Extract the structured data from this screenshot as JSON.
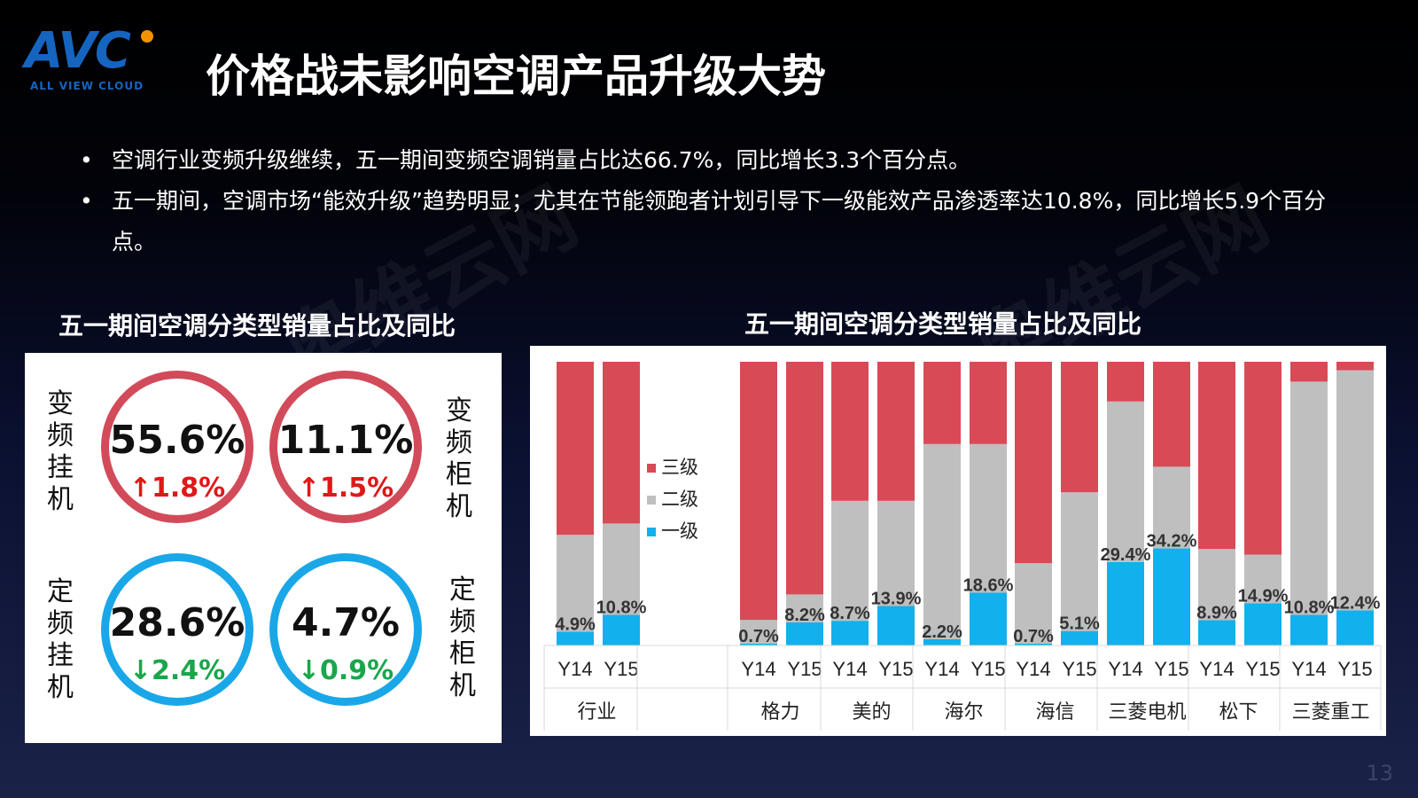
{
  "logo": {
    "mark": "AVC",
    "sub": "ALL VIEW CLOUD"
  },
  "title": "价格战未影响空调产品升级大势",
  "bullets": [
    "空调行业变频升级继续，五一期间变频空调销量占比达66.7%，同比增长3.3个百分点。",
    "五一期间，空调市场“能效升级”趋势明显；尤其在节能领跑者计划引导下一级能效产品渗透率达10.8%，同比增长5.9个百分点。"
  ],
  "left_title": "五一期间空调分类型销量占比及同比",
  "right_title": "五一期间空调分类型销量占比及同比",
  "circles": [
    {
      "label": "变频挂机",
      "pct": "55.6%",
      "change": "↑1.8%",
      "dir": "up"
    },
    {
      "label": "变频柜机",
      "pct": "11.1%",
      "change": "↑1.5%",
      "dir": "up"
    },
    {
      "label": "定频挂机",
      "pct": "28.6%",
      "change": "↓2.4%",
      "dir": "down"
    },
    {
      "label": "定频柜机",
      "pct": "4.7%",
      "change": "↓0.9%",
      "dir": "down"
    }
  ],
  "chart_data": {
    "type": "bar",
    "stacked": true,
    "percent_stacked": true,
    "legend": [
      "三级",
      "二级",
      "一级"
    ],
    "legend_position": "left",
    "colors": {
      "三级": "#d94a57",
      "二级": "#bfbfbf",
      "一级": "#12b0ec"
    },
    "groups": [
      {
        "name": "行业",
        "bars": [
          {
            "label": "Y14",
            "一级": 4.9,
            "二级": 34.1,
            "三级": 61.0,
            "text": "4.9%"
          },
          {
            "label": "Y15",
            "一级": 10.8,
            "二级": 32.2,
            "三级": 57.0,
            "text": "10.8%"
          }
        ]
      },
      {
        "name": "格力",
        "bars": [
          {
            "label": "Y14",
            "一级": 0.7,
            "二级": 8.3,
            "三级": 91.0,
            "text": "0.7%"
          },
          {
            "label": "Y15",
            "一级": 8.2,
            "二级": 9.8,
            "三级": 82.0,
            "text": "8.2%"
          }
        ]
      },
      {
        "name": "美的",
        "bars": [
          {
            "label": "Y14",
            "一级": 8.7,
            "二级": 42.3,
            "三级": 49.0,
            "text": "8.7%"
          },
          {
            "label": "Y15",
            "一级": 13.9,
            "二级": 37.1,
            "三级": 49.0,
            "text": "13.9%"
          }
        ]
      },
      {
        "name": "海尔",
        "bars": [
          {
            "label": "Y14",
            "一级": 2.2,
            "二级": 68.8,
            "三级": 29.0,
            "text": "2.2%"
          },
          {
            "label": "Y15",
            "一级": 18.6,
            "二级": 52.4,
            "三级": 29.0,
            "text": "18.6%"
          }
        ]
      },
      {
        "name": "海信",
        "bars": [
          {
            "label": "Y14",
            "一级": 0.7,
            "二级": 28.3,
            "三级": 71.0,
            "text": "0.7%"
          },
          {
            "label": "Y15",
            "一级": 5.1,
            "二级": 48.9,
            "三级": 46.0,
            "text": "5.1%"
          }
        ]
      },
      {
        "name": "三菱电机",
        "bars": [
          {
            "label": "Y14",
            "一级": 29.4,
            "二级": 56.6,
            "三级": 14.0,
            "text": "29.4%"
          },
          {
            "label": "Y15",
            "一级": 34.2,
            "二级": 28.8,
            "三级": 37.0,
            "text": "34.2%"
          }
        ]
      },
      {
        "name": "松下",
        "bars": [
          {
            "label": "Y14",
            "一级": 8.9,
            "二级": 25.1,
            "三级": 66.0,
            "text": "8.9%"
          },
          {
            "label": "Y15",
            "一级": 14.9,
            "二级": 17.1,
            "三级": 68.0,
            "text": "14.9%"
          }
        ]
      },
      {
        "name": "三菱重工",
        "bars": [
          {
            "label": "Y14",
            "一级": 10.8,
            "二级": 82.2,
            "三级": 7.0,
            "text": "10.8%"
          },
          {
            "label": "Y15",
            "一级": 12.4,
            "二级": 84.6,
            "三级": 3.0,
            "text": "12.4%"
          }
        ]
      }
    ]
  },
  "page_number": "13"
}
